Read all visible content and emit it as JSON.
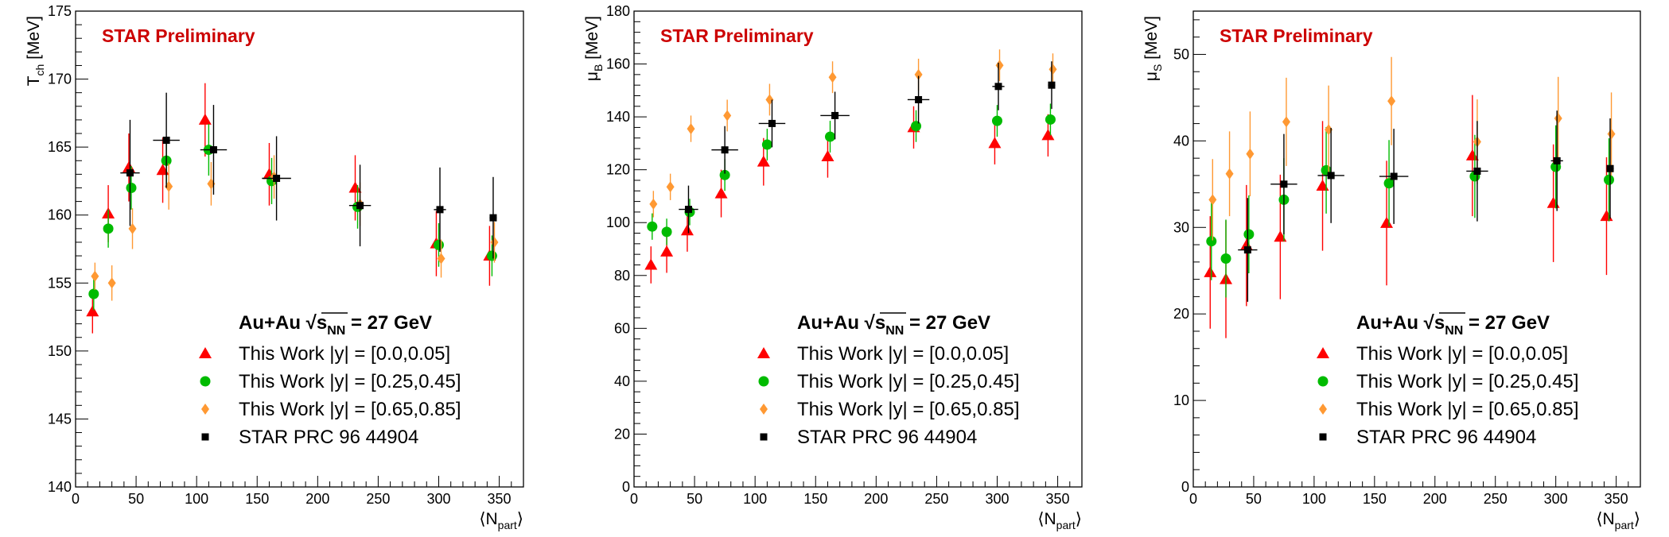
{
  "figure": {
    "energy_label": {
      "system": "Au+Au",
      "sqrt_symbol": "√",
      "s": "s",
      "sub": "NN",
      "value": "= 27 GeV"
    },
    "preliminary": "STAR Preliminary",
    "xlabel": {
      "main": "⟨N",
      "sub": "part",
      "close": "⟩"
    },
    "legend": [
      {
        "label": "This Work |y| = [0.0,0.05]",
        "marker": "triangle",
        "color": "#ff0000"
      },
      {
        "label": "This Work |y| = [0.25,0.45]",
        "marker": "circle",
        "color": "#00bb00"
      },
      {
        "label": "This Work |y| = [0.65,0.85]",
        "marker": "diamond",
        "color": "#ff9933"
      },
      {
        "label": "STAR PRC 96 44904",
        "marker": "square",
        "color": "#000000"
      }
    ]
  },
  "chart_data": [
    {
      "type": "scatter",
      "ylabel": {
        "main": "T",
        "sub": "ch",
        "unit": " [MeV]"
      },
      "xlim": [
        0,
        370
      ],
      "ylim": [
        140,
        175
      ],
      "xticks": [
        0,
        50,
        100,
        150,
        200,
        250,
        300,
        350
      ],
      "yticks": [
        140,
        145,
        150,
        155,
        160,
        165,
        170,
        175
      ],
      "x_label": "⟨Npart⟩",
      "series": [
        {
          "name": "This Work |y| = [0.0,0.05]",
          "marker": "triangle",
          "color": "#ff0000",
          "x": [
            14,
            27,
            44,
            72,
            107,
            160,
            231,
            298,
            342
          ],
          "y": [
            152.9,
            160.1,
            163.5,
            163.3,
            167.0,
            163.0,
            162.0,
            157.9,
            157.0
          ],
          "err": [
            1.6,
            2.1,
            2.5,
            2.4,
            2.7,
            2.3,
            2.4,
            2.4,
            2.2
          ]
        },
        {
          "name": "This Work |y| = [0.25,0.45]",
          "marker": "circle",
          "color": "#00bb00",
          "x": [
            15,
            27,
            46,
            75,
            110,
            162,
            233,
            300,
            344
          ],
          "y": [
            154.2,
            159.0,
            162.0,
            164.0,
            164.8,
            162.5,
            160.6,
            157.8,
            157.0
          ],
          "err": [
            1.2,
            1.4,
            1.6,
            1.7,
            1.9,
            1.7,
            1.6,
            1.6,
            1.5
          ]
        },
        {
          "name": "This Work |y| = [0.65,0.85]",
          "marker": "diamond",
          "color": "#ff9933",
          "x": [
            16,
            30,
            47,
            77,
            112,
            164,
            235,
            302,
            346
          ],
          "y": [
            155.5,
            155.0,
            159.0,
            162.1,
            162.3,
            162.8,
            160.8,
            156.8,
            158.0
          ],
          "err": [
            1.0,
            1.3,
            1.5,
            1.7,
            1.6,
            1.6,
            1.6,
            1.4,
            1.5
          ]
        },
        {
          "name": "STAR PRC 96 44904",
          "marker": "square",
          "color": "#000000",
          "x": [
            45,
            75,
            114,
            166,
            235,
            301,
            345
          ],
          "y": [
            163.1,
            165.5,
            164.8,
            162.7,
            160.7,
            160.4,
            159.8
          ],
          "err": [
            3.9,
            3.5,
            3.3,
            3.1,
            3.0,
            3.1,
            3.0
          ],
          "xerr": [
            8,
            11,
            11,
            12,
            9,
            5,
            3
          ]
        }
      ]
    },
    {
      "type": "scatter",
      "ylabel": {
        "main": "μ",
        "sub": "B",
        "unit": " [MeV]"
      },
      "xlim": [
        0,
        370
      ],
      "ylim": [
        0,
        180
      ],
      "xticks": [
        0,
        50,
        100,
        150,
        200,
        250,
        300,
        350
      ],
      "yticks": [
        0,
        20,
        40,
        60,
        80,
        100,
        120,
        140,
        160,
        180
      ],
      "x_label": "⟨Npart⟩",
      "series": [
        {
          "name": "This Work |y| = [0.0,0.05]",
          "marker": "triangle",
          "color": "#ff0000",
          "x": [
            14,
            27,
            44,
            72,
            107,
            160,
            231,
            298,
            342
          ],
          "y": [
            84,
            89,
            97,
            111,
            123,
            125,
            136,
            130,
            133
          ],
          "err": [
            7,
            8,
            8,
            9,
            9,
            8,
            8,
            8,
            8
          ]
        },
        {
          "name": "This Work |y| = [0.25,0.45]",
          "marker": "circle",
          "color": "#00bb00",
          "x": [
            15,
            27,
            46,
            75,
            110,
            162,
            233,
            300,
            344
          ],
          "y": [
            98.5,
            96.5,
            104,
            118,
            129.5,
            132.5,
            136.5,
            138.5,
            139
          ],
          "err": [
            5,
            5,
            5,
            6,
            6,
            6,
            6,
            6,
            6
          ]
        },
        {
          "name": "This Work |y| = [0.65,0.85]",
          "marker": "diamond",
          "color": "#ff9933",
          "x": [
            16,
            30,
            47,
            77,
            112,
            164,
            235,
            302,
            346
          ],
          "y": [
            107,
            113.5,
            135.5,
            140.5,
            146.5,
            155,
            156,
            159.5,
            158
          ],
          "err": [
            5,
            5,
            5,
            6,
            6,
            6,
            6,
            6,
            6
          ]
        },
        {
          "name": "STAR PRC 96 44904",
          "marker": "square",
          "color": "#000000",
          "x": [
            45,
            75,
            114,
            166,
            235,
            301,
            345
          ],
          "y": [
            105,
            127.5,
            137.5,
            140.5,
            146.5,
            151.5,
            152
          ],
          "err": [
            9,
            9,
            9,
            9,
            9,
            9,
            9
          ],
          "xerr": [
            8,
            11,
            11,
            12,
            9,
            5,
            3
          ]
        }
      ]
    },
    {
      "type": "scatter",
      "ylabel": {
        "main": "μ",
        "sub": "S",
        "unit": " [MeV]"
      },
      "xlim": [
        0,
        370
      ],
      "ylim": [
        0,
        55
      ],
      "xticks": [
        0,
        50,
        100,
        150,
        200,
        250,
        300,
        350
      ],
      "yticks": [
        0,
        10,
        20,
        30,
        40,
        50
      ],
      "x_label": "⟨Npart⟩",
      "series": [
        {
          "name": "This Work |y| = [0.0,0.05]",
          "marker": "triangle",
          "color": "#ff0000",
          "x": [
            14,
            27,
            44,
            72,
            107,
            160,
            231,
            298,
            342
          ],
          "y": [
            24.8,
            24.0,
            27.9,
            28.9,
            34.8,
            30.5,
            38.3,
            32.8,
            31.3
          ],
          "err": [
            6.5,
            6.8,
            7.0,
            7.2,
            7.5,
            7.2,
            7.0,
            6.8,
            6.8
          ]
        },
        {
          "name": "This Work |y| = [0.25,0.45]",
          "marker": "circle",
          "color": "#00bb00",
          "x": [
            15,
            27,
            46,
            75,
            110,
            162,
            233,
            300,
            344
          ],
          "y": [
            28.4,
            26.4,
            29.2,
            33.2,
            36.6,
            35.1,
            35.9,
            37.0,
            35.5
          ],
          "err": [
            4.5,
            4.5,
            4.5,
            4.8,
            5.0,
            5.0,
            4.8,
            4.8,
            4.8
          ]
        },
        {
          "name": "This Work |y| = [0.65,0.85]",
          "marker": "diamond",
          "color": "#ff9933",
          "x": [
            16,
            30,
            47,
            77,
            112,
            164,
            235,
            302,
            346
          ],
          "y": [
            33.2,
            36.2,
            38.5,
            42.2,
            41.3,
            44.6,
            39.9,
            42.6,
            40.8
          ],
          "err": [
            4.7,
            4.9,
            4.9,
            5.1,
            5.1,
            5.1,
            4.9,
            4.8,
            4.8
          ]
        },
        {
          "name": "STAR PRC 96 44904",
          "marker": "square",
          "color": "#000000",
          "x": [
            45,
            75,
            114,
            166,
            235,
            301,
            345
          ],
          "y": [
            27.4,
            35.0,
            36.0,
            35.9,
            36.5,
            37.7,
            36.8
          ],
          "err": [
            6.0,
            5.8,
            5.5,
            5.5,
            5.8,
            5.8,
            5.8
          ],
          "xerr": [
            8,
            11,
            11,
            12,
            9,
            5,
            3
          ]
        }
      ]
    }
  ]
}
